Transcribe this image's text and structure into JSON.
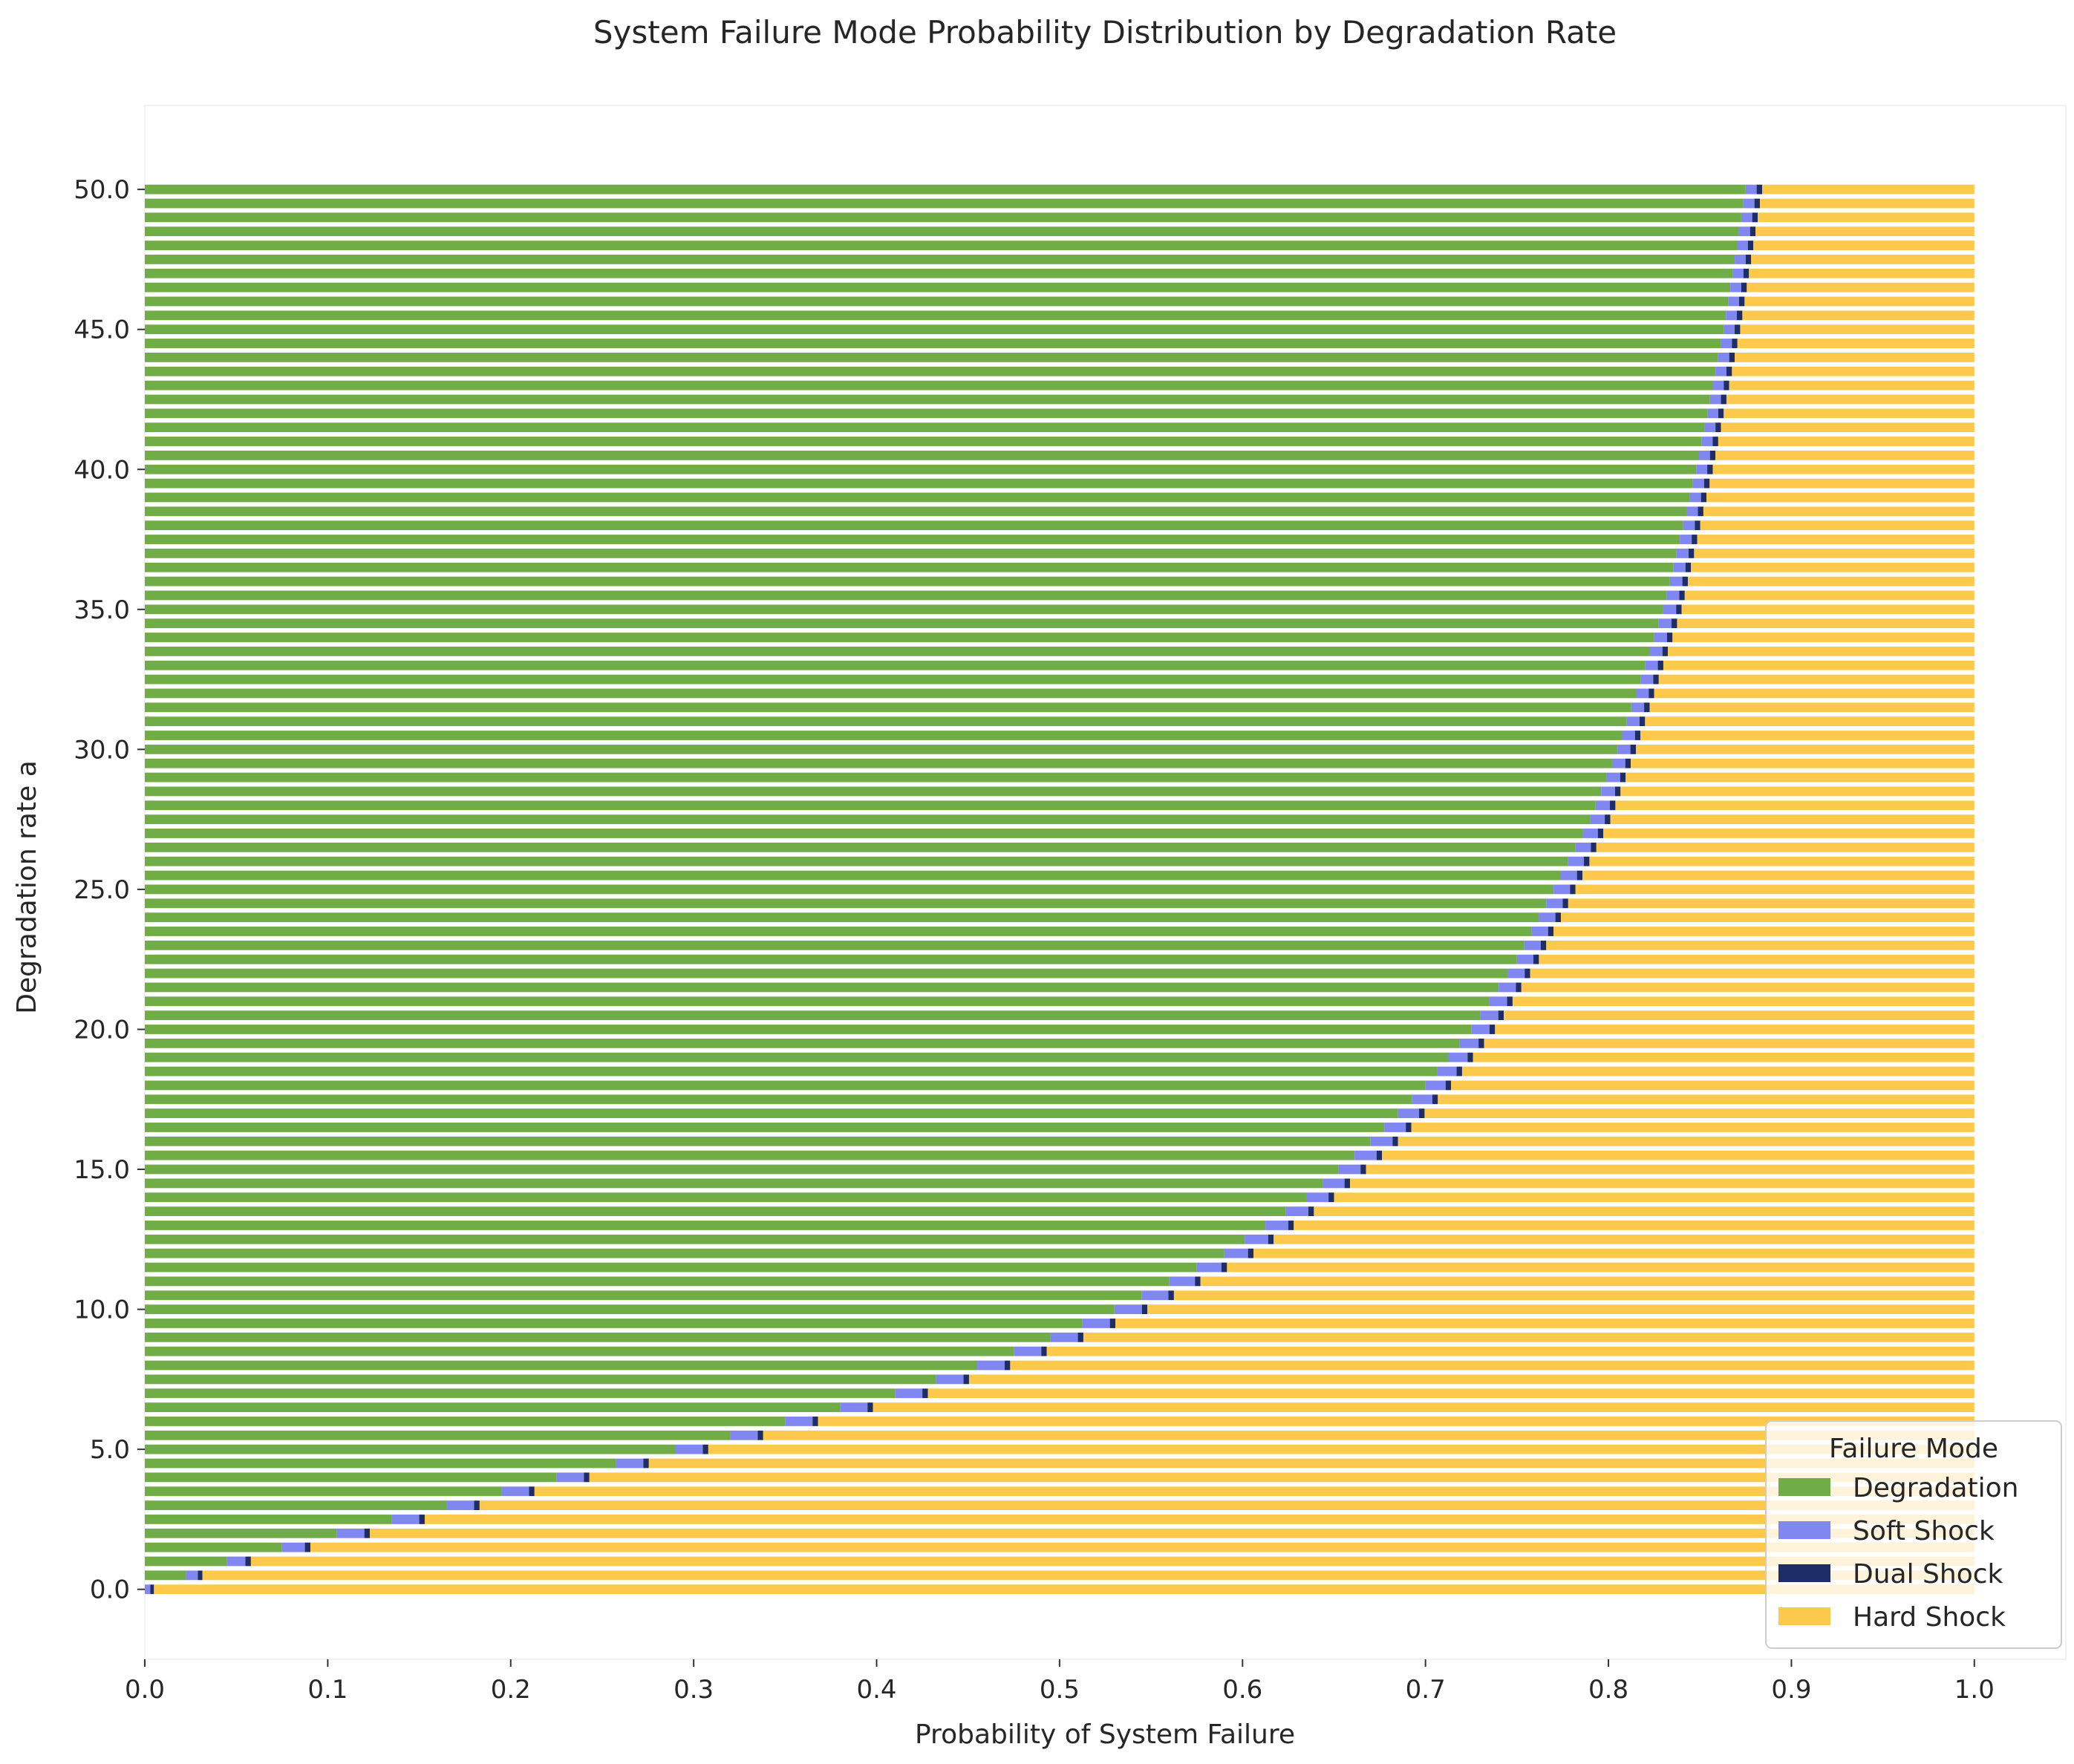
{
  "chart_data": {
    "type": "bar",
    "orientation": "horizontal",
    "stacked": true,
    "title": "System Failure Mode Probability Distribution by Degradation Rate",
    "xlabel": "Probability of System Failure",
    "ylabel": "Degradation rate a",
    "xlim": [
      0.0,
      1.05
    ],
    "ylim": [
      -2.5,
      53.0
    ],
    "xticks": [
      "0.0",
      "0.1",
      "0.2",
      "0.3",
      "0.4",
      "0.5",
      "0.6",
      "0.7",
      "0.8",
      "0.9",
      "1.0"
    ],
    "yticks": [
      "0.0",
      "5.0",
      "10.0",
      "15.0",
      "20.0",
      "25.0",
      "30.0",
      "35.0",
      "40.0",
      "45.0",
      "50.0"
    ],
    "grid": false,
    "degradation_rate": {
      "start": 0.0,
      "stop": 50.0,
      "step": 0.5
    },
    "boundary_curves": {
      "a": [
        0,
        1,
        2,
        3,
        4,
        5,
        6,
        7,
        8,
        9,
        10,
        12,
        14,
        16,
        18,
        20,
        22.5,
        25,
        27.5,
        30,
        35,
        40,
        45,
        50
      ],
      "degradation_end": [
        0.0,
        0.045,
        0.105,
        0.165,
        0.225,
        0.29,
        0.35,
        0.41,
        0.455,
        0.495,
        0.53,
        0.59,
        0.635,
        0.67,
        0.7,
        0.725,
        0.75,
        0.77,
        0.79,
        0.805,
        0.83,
        0.848,
        0.863,
        0.875
      ],
      "soft_shock_end": [
        0.003,
        0.055,
        0.12,
        0.18,
        0.24,
        0.305,
        0.365,
        0.425,
        0.47,
        0.51,
        0.545,
        0.603,
        0.647,
        0.682,
        0.711,
        0.735,
        0.759,
        0.779,
        0.798,
        0.812,
        0.837,
        0.854,
        0.869,
        0.881
      ],
      "dual_shock_end": [
        0.005,
        0.058,
        0.123,
        0.183,
        0.243,
        0.308,
        0.368,
        0.428,
        0.473,
        0.513,
        0.548,
        0.606,
        0.65,
        0.685,
        0.714,
        0.738,
        0.762,
        0.782,
        0.801,
        0.815,
        0.84,
        0.857,
        0.872,
        0.884
      ],
      "hard_shock_end": 1.0
    },
    "series": [
      {
        "name": "Degradation",
        "color": "#70ad47"
      },
      {
        "name": "Soft Shock",
        "color": "#8087f1"
      },
      {
        "name": "Dual Shock",
        "color": "#1f2d67"
      },
      {
        "name": "Hard Shock",
        "color": "#fcc94c"
      }
    ],
    "legend": {
      "title": "Failure Mode",
      "placement": "lower-right",
      "entries": [
        "Degradation",
        "Soft Shock",
        "Dual Shock",
        "Hard Shock"
      ]
    }
  }
}
